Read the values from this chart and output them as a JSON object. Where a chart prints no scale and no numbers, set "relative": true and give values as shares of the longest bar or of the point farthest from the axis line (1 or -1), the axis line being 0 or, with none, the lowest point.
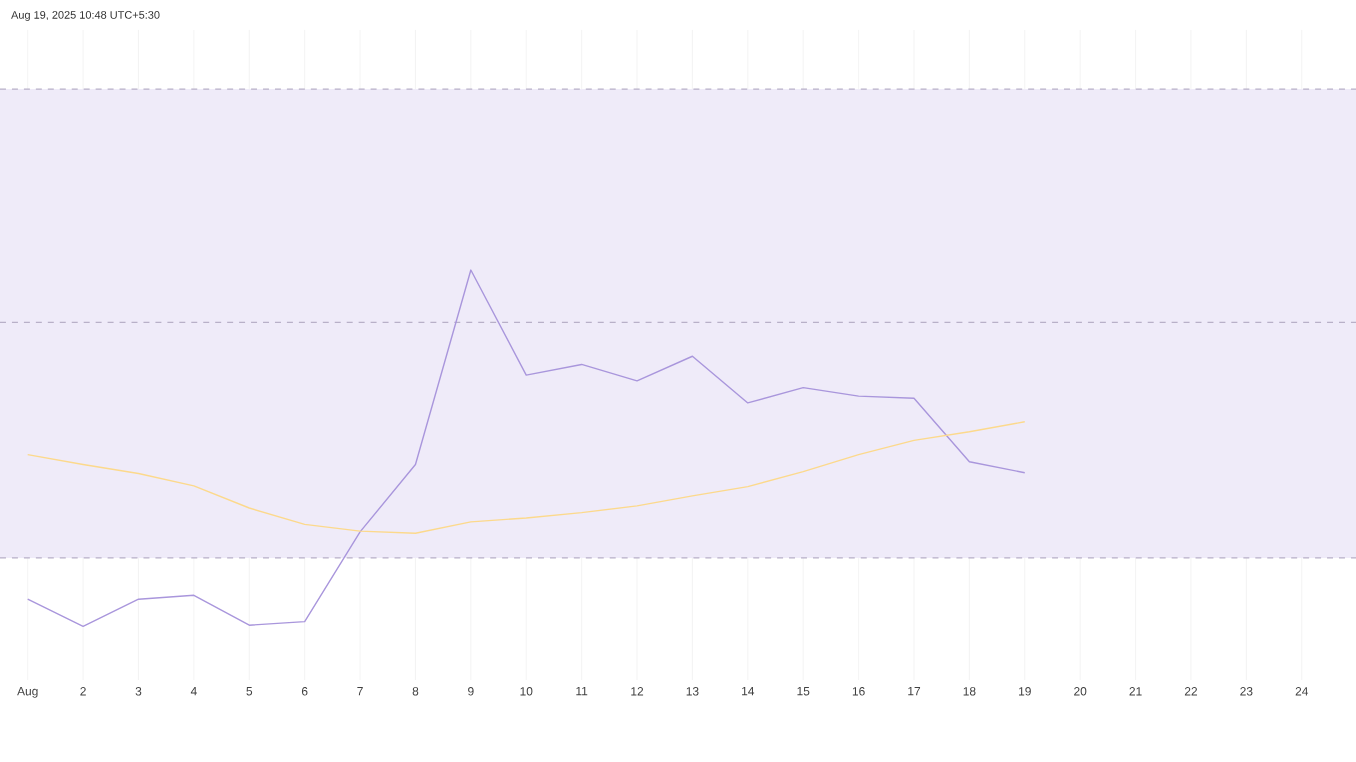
{
  "chart_data": {
    "type": "line",
    "relative": true,
    "grid": "x",
    "marker": "none",
    "line_style": "solid",
    "annotations": [
      "Aug 19, 2025 10:48 UTC+5:30"
    ],
    "categories": [
      "Aug",
      "2",
      "3",
      "4",
      "5",
      "6",
      "7",
      "8",
      "9",
      "10",
      "11",
      "12",
      "13",
      "14",
      "15",
      "16",
      "17",
      "18",
      "19",
      "20",
      "21",
      "22",
      "23",
      "24"
    ],
    "series": [
      {
        "color": "#a996dc",
        "values": [
          0.076,
          0,
          0.076,
          0.087,
          0.003,
          0.013,
          0.265,
          0.454,
          1,
          0.705,
          0.735,
          0.689,
          0.758,
          0.627,
          0.67,
          0.646,
          0.64,
          0.462,
          0.431,
          null,
          null,
          null,
          null,
          null
        ]
      },
      {
        "color": "#fcd98c",
        "values": [
          0.482,
          0.454,
          0.429,
          0.394,
          0.332,
          0.286,
          0.267,
          0.261,
          0.293,
          0.304,
          0.319,
          0.338,
          0.366,
          0.392,
          0.434,
          0.482,
          0.522,
          0.546,
          0.574,
          null,
          null,
          null,
          null,
          null
        ]
      }
    ],
    "bands": [
      {
        "axis": "y",
        "from": 0.192,
        "to": 1.508,
        "color": "#efebf9"
      }
    ],
    "ref_lines": [
      {
        "axis": "y",
        "value": 1.508,
        "color": "#b8b0c8",
        "line_style": "dashed"
      },
      {
        "axis": "y",
        "value": 0.853,
        "color": "#b8b0c8",
        "line_style": "dashed"
      },
      {
        "axis": "y",
        "value": 0.192,
        "color": "#b8b0c8",
        "line_style": "dashed"
      }
    ]
  }
}
